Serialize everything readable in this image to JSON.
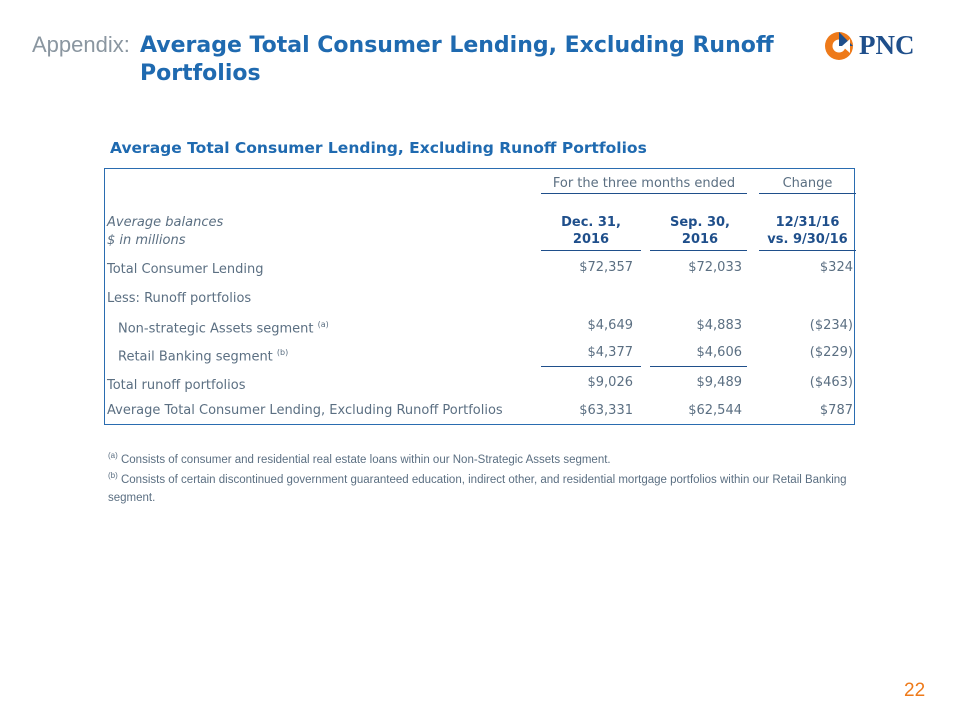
{
  "header": {
    "prefix": "Appendix:",
    "title": "Average Total Consumer Lending, Excluding Runoff Portfolios"
  },
  "logo": {
    "text": "PNC",
    "color_orange": "#ee7a1a",
    "color_blue": "#1f4f8b"
  },
  "table": {
    "title": "Average Total Consumer Lending, Excluding Runoff Portfolios",
    "group_header": "For the three months ended",
    "change_header": "Change",
    "row_label_header_1": "Average balances",
    "row_label_header_2": "$ in millions",
    "col1": {
      "line1": "Dec. 31,",
      "line2": "2016"
    },
    "col2": {
      "line1": "Sep. 30,",
      "line2": "2016"
    },
    "col3": {
      "line1": "12/31/16",
      "line2": "vs. 9/30/16"
    },
    "rows": [
      {
        "label": "Total Consumer Lending",
        "v1": "$72,357",
        "v2": "$72,033",
        "v3": "$324"
      },
      {
        "label": "Less: Runoff portfolios",
        "v1": "",
        "v2": "",
        "v3": ""
      },
      {
        "label": "Non-strategic Assets segment",
        "note": "(a)",
        "v1": "$4,649",
        "v2": "$4,883",
        "v3": "($234)"
      },
      {
        "label": "Retail Banking segment",
        "note": "(b)",
        "v1": "$4,377",
        "v2": "$4,606",
        "v3": "($229)"
      },
      {
        "label": "Total runoff portfolios",
        "v1": "$9,026",
        "v2": "$9,489",
        "v3": "($463)"
      },
      {
        "label": "Average Total Consumer Lending, Excluding Runoff Portfolios",
        "v1": "$63,331",
        "v2": "$62,544",
        "v3": "$787"
      }
    ]
  },
  "footnotes": {
    "a_mark": "(a)",
    "a_text": "Consists of consumer and residential real estate loans within our Non-Strategic Assets segment.",
    "b_mark": "(b)",
    "b_text": "Consists of certain discontinued government guaranteed education, indirect other, and residential mortgage portfolios within our Retail Banking segment."
  },
  "page_number": "22"
}
